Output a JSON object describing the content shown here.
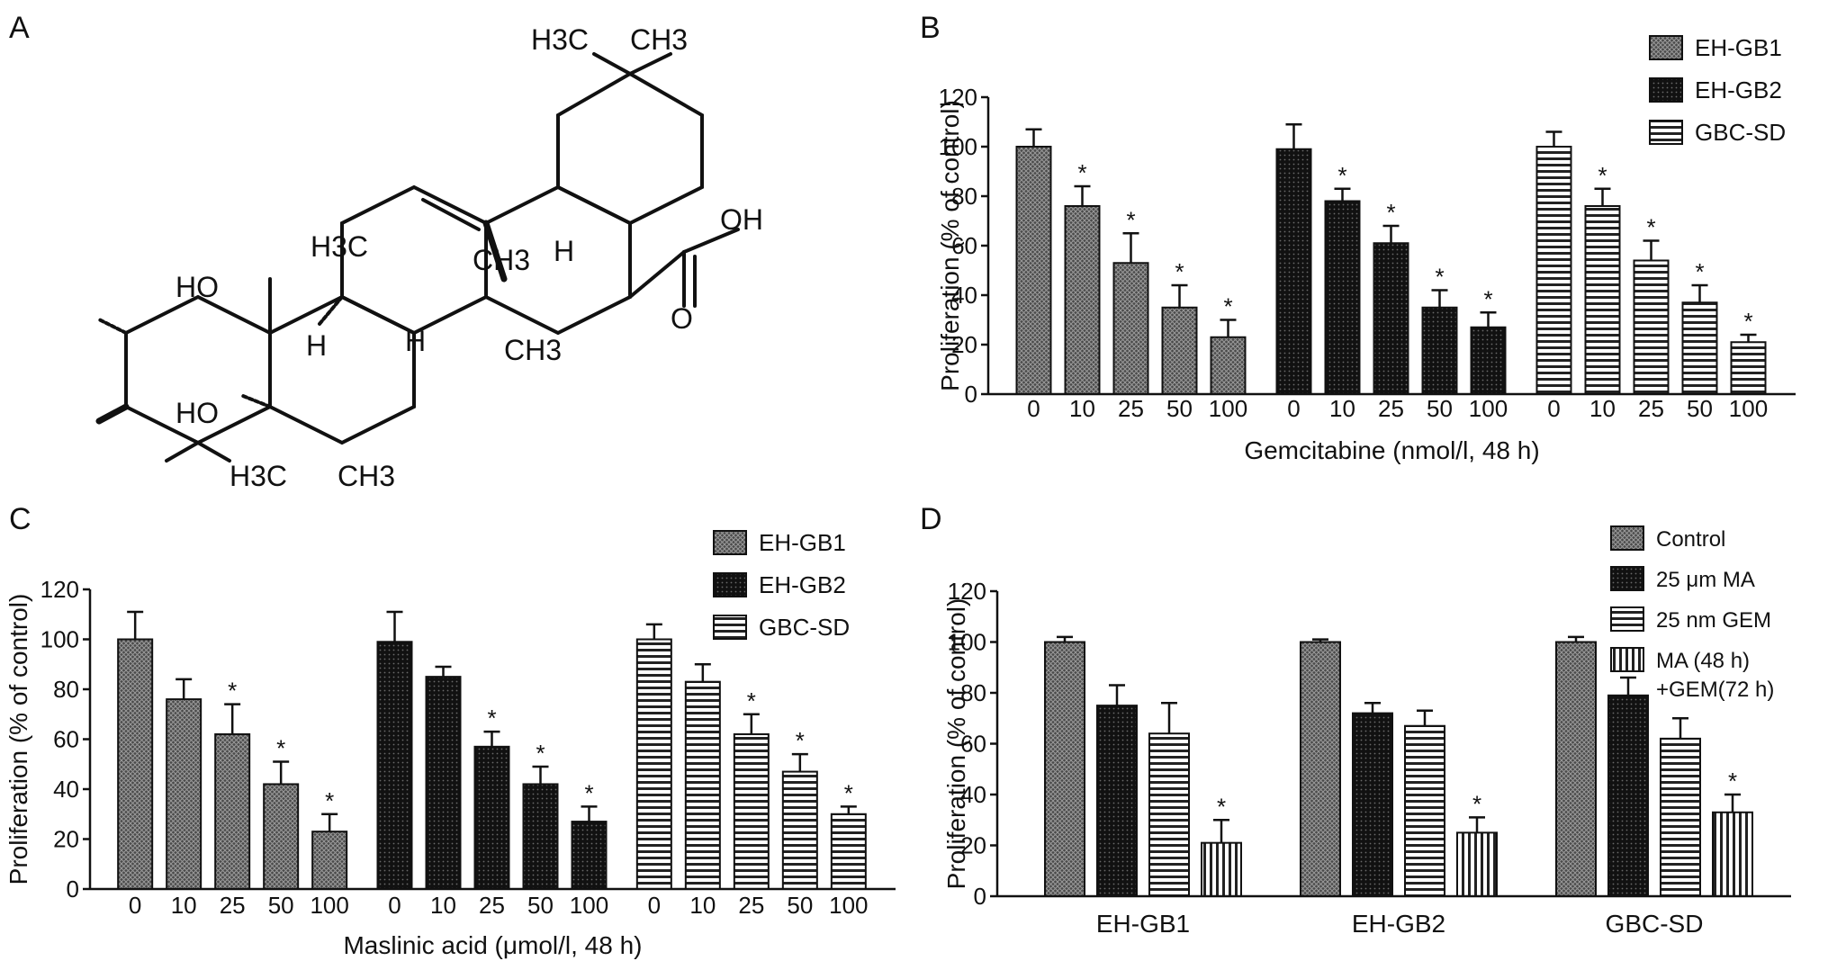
{
  "panels": {
    "A": {
      "letter": "A"
    },
    "B": {
      "letter": "B"
    },
    "C": {
      "letter": "C"
    },
    "D": {
      "letter": "D"
    }
  },
  "molecule": {
    "labels": [
      "H3C",
      "CH3",
      "OH",
      "O",
      "H",
      "H3C",
      "CH3",
      "HO",
      "H",
      "H",
      "CH3",
      "HO",
      "H3C",
      "CH3"
    ]
  },
  "chart_data": [
    {
      "panel": "B",
      "type": "bar",
      "ylabel": "Proliferation (% of control)",
      "xlabel": "Gemcitabine (nmol/l, 48 h)",
      "ylim": [
        0,
        120
      ],
      "yticks": [
        0,
        20,
        40,
        60,
        80,
        100,
        120
      ],
      "categories": [
        "0",
        "10",
        "25",
        "50",
        "100"
      ],
      "series": [
        {
          "name": "EH-GB1",
          "pattern": "crosshatch",
          "values": [
            100,
            76,
            53,
            35,
            23
          ],
          "errors": [
            7,
            8,
            12,
            9,
            7
          ],
          "sig": [
            false,
            true,
            true,
            true,
            true
          ]
        },
        {
          "name": "EH-GB2",
          "pattern": "dots",
          "values": [
            99,
            78,
            61,
            35,
            27
          ],
          "errors": [
            10,
            5,
            7,
            7,
            6
          ],
          "sig": [
            false,
            true,
            true,
            true,
            true
          ]
        },
        {
          "name": "GBC-SD",
          "pattern": "hstripes",
          "values": [
            100,
            76,
            54,
            37,
            21
          ],
          "errors": [
            6,
            7,
            8,
            7,
            3
          ],
          "sig": [
            false,
            true,
            true,
            true,
            true
          ]
        }
      ],
      "legend": {
        "placement": "top-right"
      }
    },
    {
      "panel": "C",
      "type": "bar",
      "ylabel": "Proliferation (% of control)",
      "xlabel": "Maslinic acid (μmol/l, 48 h)",
      "ylim": [
        0,
        120
      ],
      "yticks": [
        0,
        20,
        40,
        60,
        80,
        100,
        120
      ],
      "categories": [
        "0",
        "10",
        "25",
        "50",
        "100"
      ],
      "series": [
        {
          "name": "EH-GB1",
          "pattern": "crosshatch",
          "values": [
            100,
            76,
            62,
            42,
            23
          ],
          "errors": [
            11,
            8,
            12,
            9,
            7
          ],
          "sig": [
            false,
            false,
            true,
            true,
            true
          ]
        },
        {
          "name": "EH-GB2",
          "pattern": "dots",
          "values": [
            99,
            85,
            57,
            42,
            27
          ],
          "errors": [
            12,
            4,
            6,
            7,
            6
          ],
          "sig": [
            false,
            false,
            true,
            true,
            true
          ]
        },
        {
          "name": "GBC-SD",
          "pattern": "hstripes",
          "values": [
            100,
            83,
            62,
            47,
            30
          ],
          "errors": [
            6,
            7,
            8,
            7,
            3
          ],
          "sig": [
            false,
            false,
            true,
            true,
            true
          ]
        }
      ],
      "legend": {
        "placement": "top-right"
      }
    },
    {
      "panel": "D",
      "type": "bar",
      "ylabel": "Proliferation (% of control)",
      "xlabel": "",
      "ylim": [
        0,
        120
      ],
      "yticks": [
        0,
        20,
        40,
        60,
        80,
        100,
        120
      ],
      "categories": [
        "EH-GB1",
        "EH-GB2",
        "GBC-SD"
      ],
      "series": [
        {
          "name": "Control",
          "legend_lines": [
            "Control"
          ],
          "pattern": "crosshatch",
          "values": [
            100,
            100,
            100
          ],
          "errors": [
            2,
            1,
            2
          ],
          "sig": [
            false,
            false,
            false
          ]
        },
        {
          "name": "25 μm MA",
          "legend_lines": [
            "25 μm MA"
          ],
          "pattern": "dots",
          "values": [
            75,
            72,
            79
          ],
          "errors": [
            8,
            4,
            7
          ],
          "sig": [
            false,
            false,
            false
          ]
        },
        {
          "name": "25 nm GEM",
          "legend_lines": [
            "25 nm GEM"
          ],
          "pattern": "hstripes",
          "values": [
            64,
            67,
            62
          ],
          "errors": [
            12,
            6,
            8
          ],
          "sig": [
            false,
            false,
            false
          ]
        },
        {
          "name": "MA (48 h) +GEM(72 h)",
          "legend_lines": [
            "MA (48 h)",
            "+GEM(72 h)"
          ],
          "pattern": "vstripes",
          "values": [
            21,
            25,
            33
          ],
          "errors": [
            9,
            6,
            7
          ],
          "sig": [
            true,
            true,
            true
          ]
        }
      ],
      "legend": {
        "placement": "top-right"
      }
    }
  ]
}
